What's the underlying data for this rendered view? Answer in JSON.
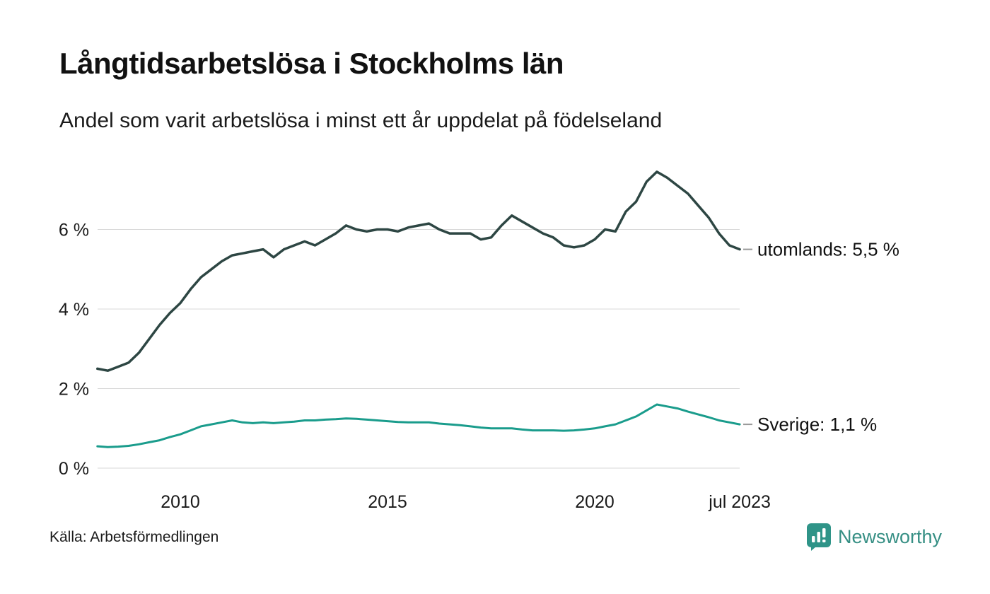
{
  "header": {
    "title": "Långtidsarbetslösa i Stockholms län",
    "subtitle": "Andel som varit arbetslösa i minst ett år uppdelat på födelseland"
  },
  "footer": {
    "source": "Källa: Arbetsförmedlingen",
    "brand": "Newsworthy",
    "brand_color": "#368f84",
    "logo_icon": "newsworthy-chart-logo"
  },
  "chart_data": {
    "type": "line",
    "title": "Långtidsarbetslösa i Stockholms län",
    "xlabel": "",
    "ylabel": "",
    "ylim": [
      0,
      7.6
    ],
    "xlim": [
      2008,
      2023.58
    ],
    "grid": "horizontal",
    "grid_color": "#d8d8d8",
    "x": [
      2008,
      2008.25,
      2008.5,
      2008.75,
      2009,
      2009.25,
      2009.5,
      2009.75,
      2010,
      2010.25,
      2010.5,
      2010.75,
      2011,
      2011.25,
      2011.5,
      2011.75,
      2012,
      2012.25,
      2012.5,
      2012.75,
      2013,
      2013.25,
      2013.5,
      2013.75,
      2014,
      2014.25,
      2014.5,
      2014.75,
      2015,
      2015.25,
      2015.5,
      2015.75,
      2016,
      2016.25,
      2016.5,
      2016.75,
      2017,
      2017.25,
      2017.5,
      2017.75,
      2018,
      2018.25,
      2018.5,
      2018.75,
      2019,
      2019.25,
      2019.5,
      2019.75,
      2020,
      2020.25,
      2020.5,
      2020.75,
      2021,
      2021.25,
      2021.5,
      2021.75,
      2022,
      2022.25,
      2022.5,
      2022.75,
      2023,
      2023.25,
      2023.5
    ],
    "series": [
      {
        "name": "utomlands",
        "color": "#2d4643",
        "end_label": "utomlands: 5,5 %",
        "last_value": 5.5,
        "values": [
          2.5,
          2.45,
          2.55,
          2.65,
          2.9,
          3.25,
          3.6,
          3.9,
          4.15,
          4.5,
          4.8,
          5.0,
          5.2,
          5.35,
          5.4,
          5.45,
          5.5,
          5.3,
          5.5,
          5.6,
          5.7,
          5.6,
          5.75,
          5.9,
          6.1,
          6.0,
          5.95,
          6.0,
          6.0,
          5.95,
          6.05,
          6.1,
          6.15,
          6.0,
          5.9,
          5.9,
          5.9,
          5.75,
          5.8,
          6.1,
          6.35,
          6.2,
          6.05,
          5.9,
          5.8,
          5.6,
          5.55,
          5.6,
          5.75,
          6.0,
          5.95,
          6.45,
          6.7,
          7.2,
          7.45,
          7.3,
          7.1,
          6.9,
          6.6,
          6.3,
          5.9,
          5.6,
          5.5
        ]
      },
      {
        "name": "Sverige",
        "color": "#1a9c8c",
        "end_label": "Sverige: 1,1 %",
        "last_value": 1.1,
        "values": [
          0.55,
          0.53,
          0.54,
          0.56,
          0.6,
          0.65,
          0.7,
          0.78,
          0.85,
          0.95,
          1.05,
          1.1,
          1.15,
          1.2,
          1.15,
          1.13,
          1.15,
          1.13,
          1.15,
          1.17,
          1.2,
          1.2,
          1.22,
          1.23,
          1.25,
          1.24,
          1.22,
          1.2,
          1.18,
          1.16,
          1.15,
          1.15,
          1.15,
          1.12,
          1.1,
          1.08,
          1.05,
          1.02,
          1.0,
          1.0,
          1.0,
          0.97,
          0.95,
          0.95,
          0.95,
          0.94,
          0.95,
          0.97,
          1.0,
          1.05,
          1.1,
          1.2,
          1.3,
          1.45,
          1.6,
          1.55,
          1.5,
          1.42,
          1.35,
          1.28,
          1.2,
          1.15,
          1.1
        ]
      }
    ],
    "yticks": [
      {
        "value": 0,
        "label": "0 %"
      },
      {
        "value": 2,
        "label": "2 %"
      },
      {
        "value": 4,
        "label": "4 %"
      },
      {
        "value": 6,
        "label": "6 %"
      }
    ],
    "xticks": [
      {
        "value": 2010,
        "label": "2010"
      },
      {
        "value": 2015,
        "label": "2015"
      },
      {
        "value": 2020,
        "label": "2020"
      },
      {
        "value": 2023.5,
        "label": "jul 2023"
      }
    ],
    "legend_position": "end-of-line-labels"
  }
}
